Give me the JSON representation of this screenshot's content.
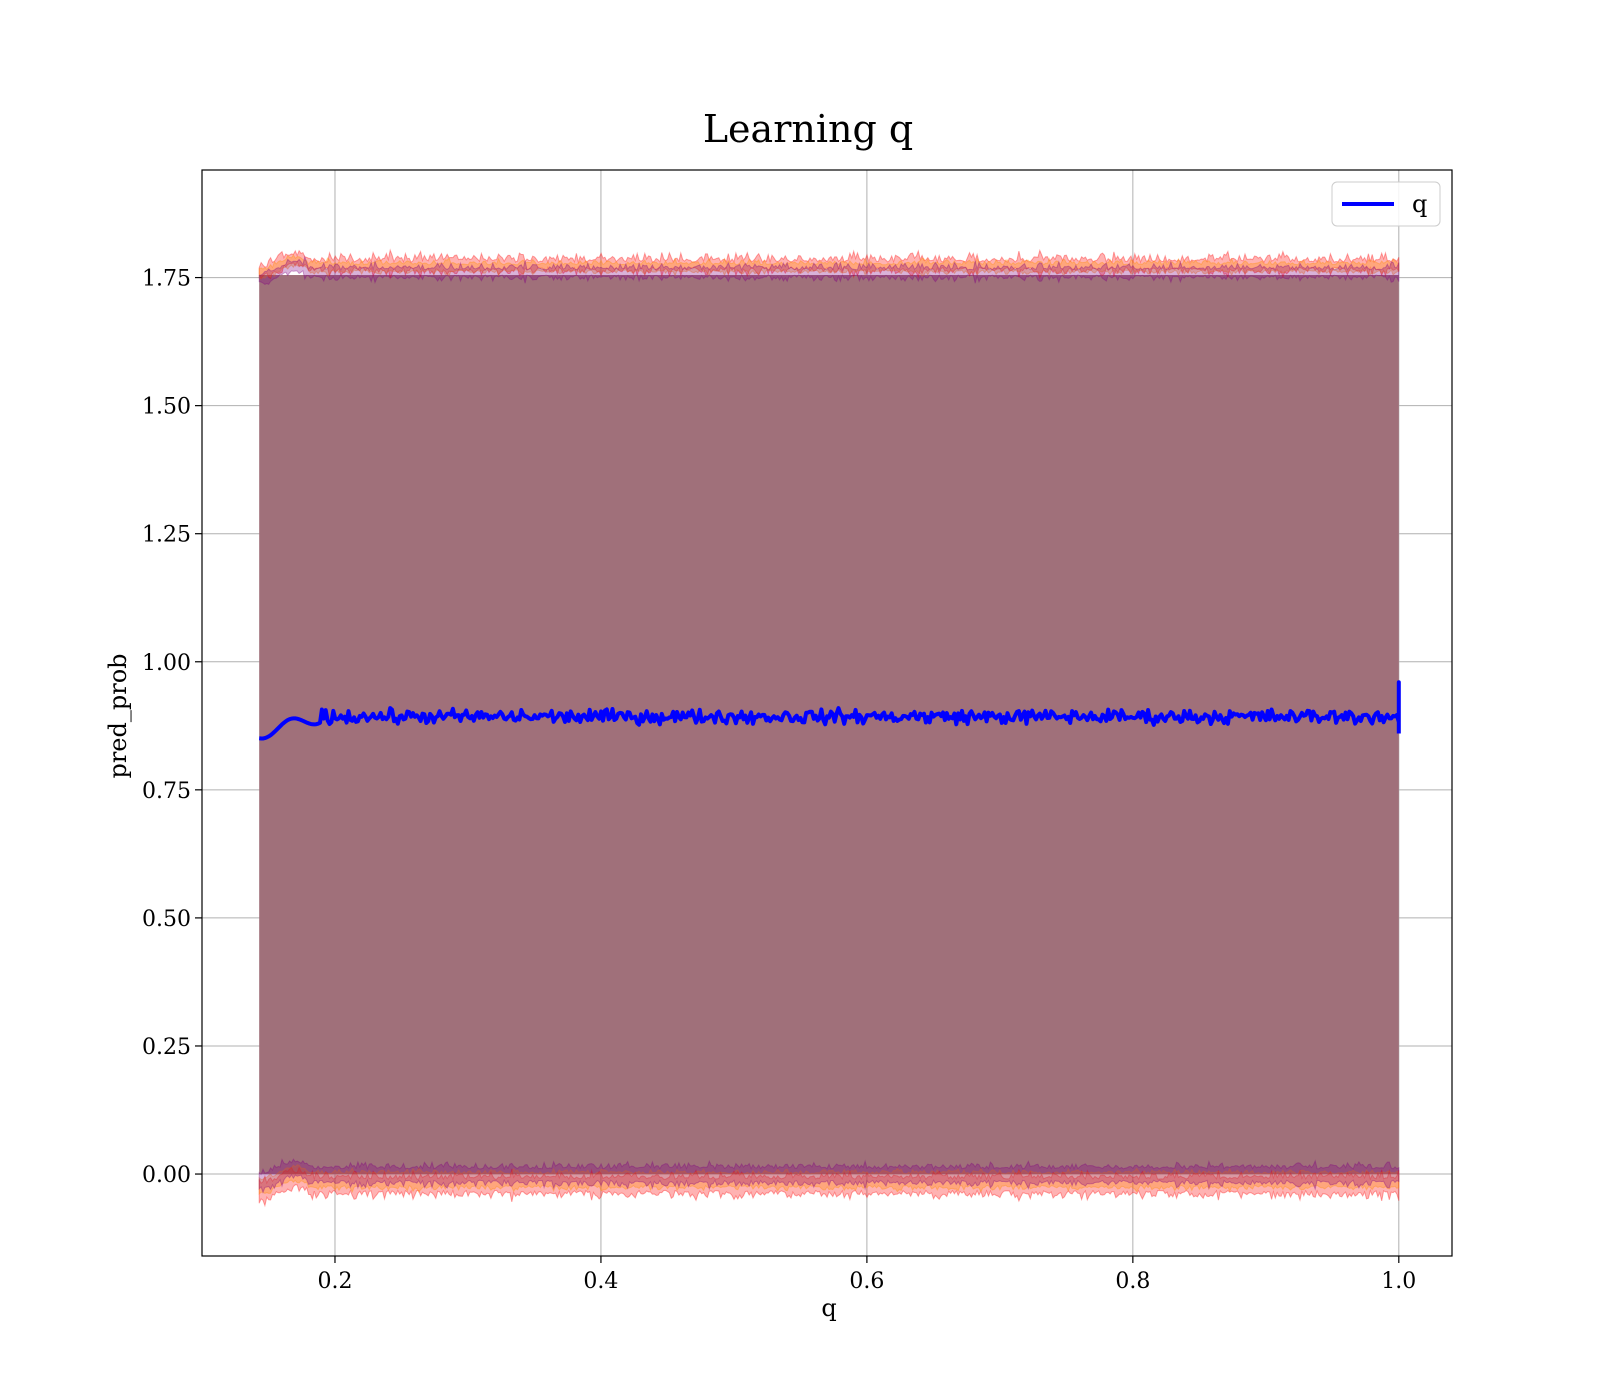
{
  "chart_data": {
    "type": "line",
    "title": "Learning q",
    "xlabel": "q",
    "ylabel": "pred_prob",
    "xlim": [
      0.1,
      1.04
    ],
    "ylim": [
      -0.16,
      1.96
    ],
    "xticks": [
      0.2,
      0.4,
      0.6,
      0.8,
      1.0
    ],
    "xtick_labels": [
      "0.2",
      "0.4",
      "0.6",
      "0.8",
      "1.0"
    ],
    "yticks": [
      0.0,
      0.25,
      0.5,
      0.75,
      1.0,
      1.25,
      1.5,
      1.75
    ],
    "ytick_labels": [
      "0.00",
      "0.25",
      "0.50",
      "0.75",
      "1.00",
      "1.25",
      "1.50",
      "1.75"
    ],
    "grid": true,
    "legend": {
      "placement": "upper-right",
      "entries": [
        "q"
      ]
    },
    "series": [
      {
        "name": "q",
        "color": "#0000ff",
        "x_range": [
          0.143,
          1.0
        ],
        "y_start": 0.86,
        "y_mean": 0.893,
        "y_fluctuation": 0.02,
        "y_end_spike": [
          0.86,
          0.96
        ]
      }
    ],
    "bands": [
      {
        "color": "#ff0000",
        "x_range": [
          0.143,
          1.0
        ],
        "lower": -0.02,
        "upper": 1.78,
        "jitter": 0.025
      },
      {
        "color": "#ff8c00",
        "x_range": [
          0.143,
          1.0
        ],
        "lower": -0.01,
        "upper": 1.775,
        "jitter": 0.015
      },
      {
        "color": "#800080",
        "x_range": [
          0.143,
          1.0
        ],
        "lower": 0.0,
        "upper": 1.765,
        "jitter": 0.02
      }
    ],
    "fill_color": "#a0707a"
  }
}
